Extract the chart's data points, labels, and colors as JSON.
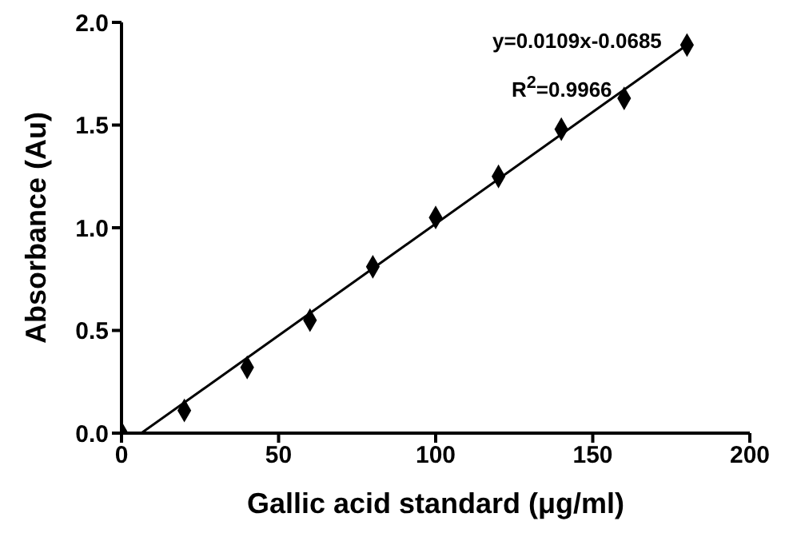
{
  "chart_data": {
    "type": "scatter",
    "xlabel": "Gallic acid standard (μg/ml)",
    "ylabel": "Absorbance (Au)",
    "annotations": [
      "y=0.0109x-0.0685",
      "R$^{2}$=0.9966"
    ],
    "xlim": [
      0,
      200
    ],
    "xticks": [
      0,
      50,
      100,
      150,
      200
    ],
    "ylim": [
      0,
      2.0
    ],
    "yticks": [
      {
        "value": 0,
        "label": "0.0"
      },
      {
        "value": 0.5,
        "label": "0.5"
      },
      {
        "value": 1.0,
        "label": "1.0"
      },
      {
        "value": 1.5,
        "label": "1.5"
      },
      {
        "value": 2.0,
        "label": "2.0"
      }
    ],
    "marker": "diamond",
    "series": [
      {
        "color": "#000000",
        "x": [
          0,
          20,
          40,
          60,
          80,
          100,
          120,
          140,
          160,
          180
        ],
        "values": [
          0,
          0.11,
          0.32,
          0.55,
          0.81,
          1.05,
          1.25,
          1.48,
          1.63,
          1.89
        ]
      },
      {
        "type": "line",
        "color": "#000000",
        "marker": "none",
        "line_style": "solid",
        "x": [
          6.3,
          180
        ],
        "values": [
          0,
          1.89
        ]
      }
    ]
  }
}
